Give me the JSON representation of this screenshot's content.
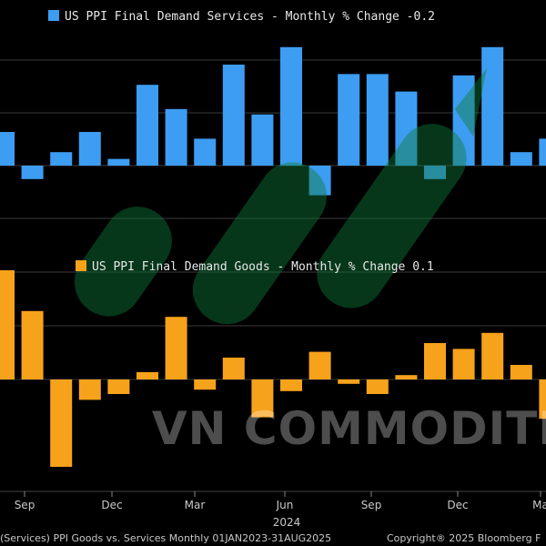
{
  "chart_data": [
    {
      "type": "bar",
      "legend": "US PPI Final Demand Services - Monthly % Change -0.2",
      "legend_color": "#3d9df2",
      "values": [
        0.25,
        -0.1,
        0.1,
        0.25,
        0.05,
        0.6,
        0.42,
        0.2,
        0.75,
        0.38,
        0.88,
        -0.22,
        0.68,
        0.68,
        0.55,
        -0.1,
        0.67,
        0.88,
        0.1,
        0.2
      ],
      "ylim": [
        -0.3,
        1.0
      ]
    },
    {
      "type": "bar",
      "legend": "US PPI Final Demand Goods - Monthly % Change 0.1",
      "legend_color": "#f7a21b",
      "values": [
        0.75,
        0.47,
        -0.6,
        -0.14,
        -0.1,
        0.05,
        0.43,
        -0.07,
        0.15,
        -0.26,
        -0.08,
        0.19,
        -0.03,
        -0.1,
        0.03,
        0.25,
        0.21,
        0.32,
        0.1,
        -0.27
      ],
      "ylim": [
        -0.6,
        1.0
      ]
    }
  ],
  "x_axis": {
    "month_ticks": [
      "Sep",
      "Dec",
      "Mar",
      "Jun",
      "Sep",
      "Dec",
      "Ma"
    ],
    "year_label": "2024"
  },
  "footer": {
    "left": "(Services) PPI Goods vs. Services Monthly 01JAN2023-31AUG2025",
    "right": "Copyright® 2025 Bloomberg F"
  },
  "watermark": {
    "text": "VN COMMODITIES"
  }
}
